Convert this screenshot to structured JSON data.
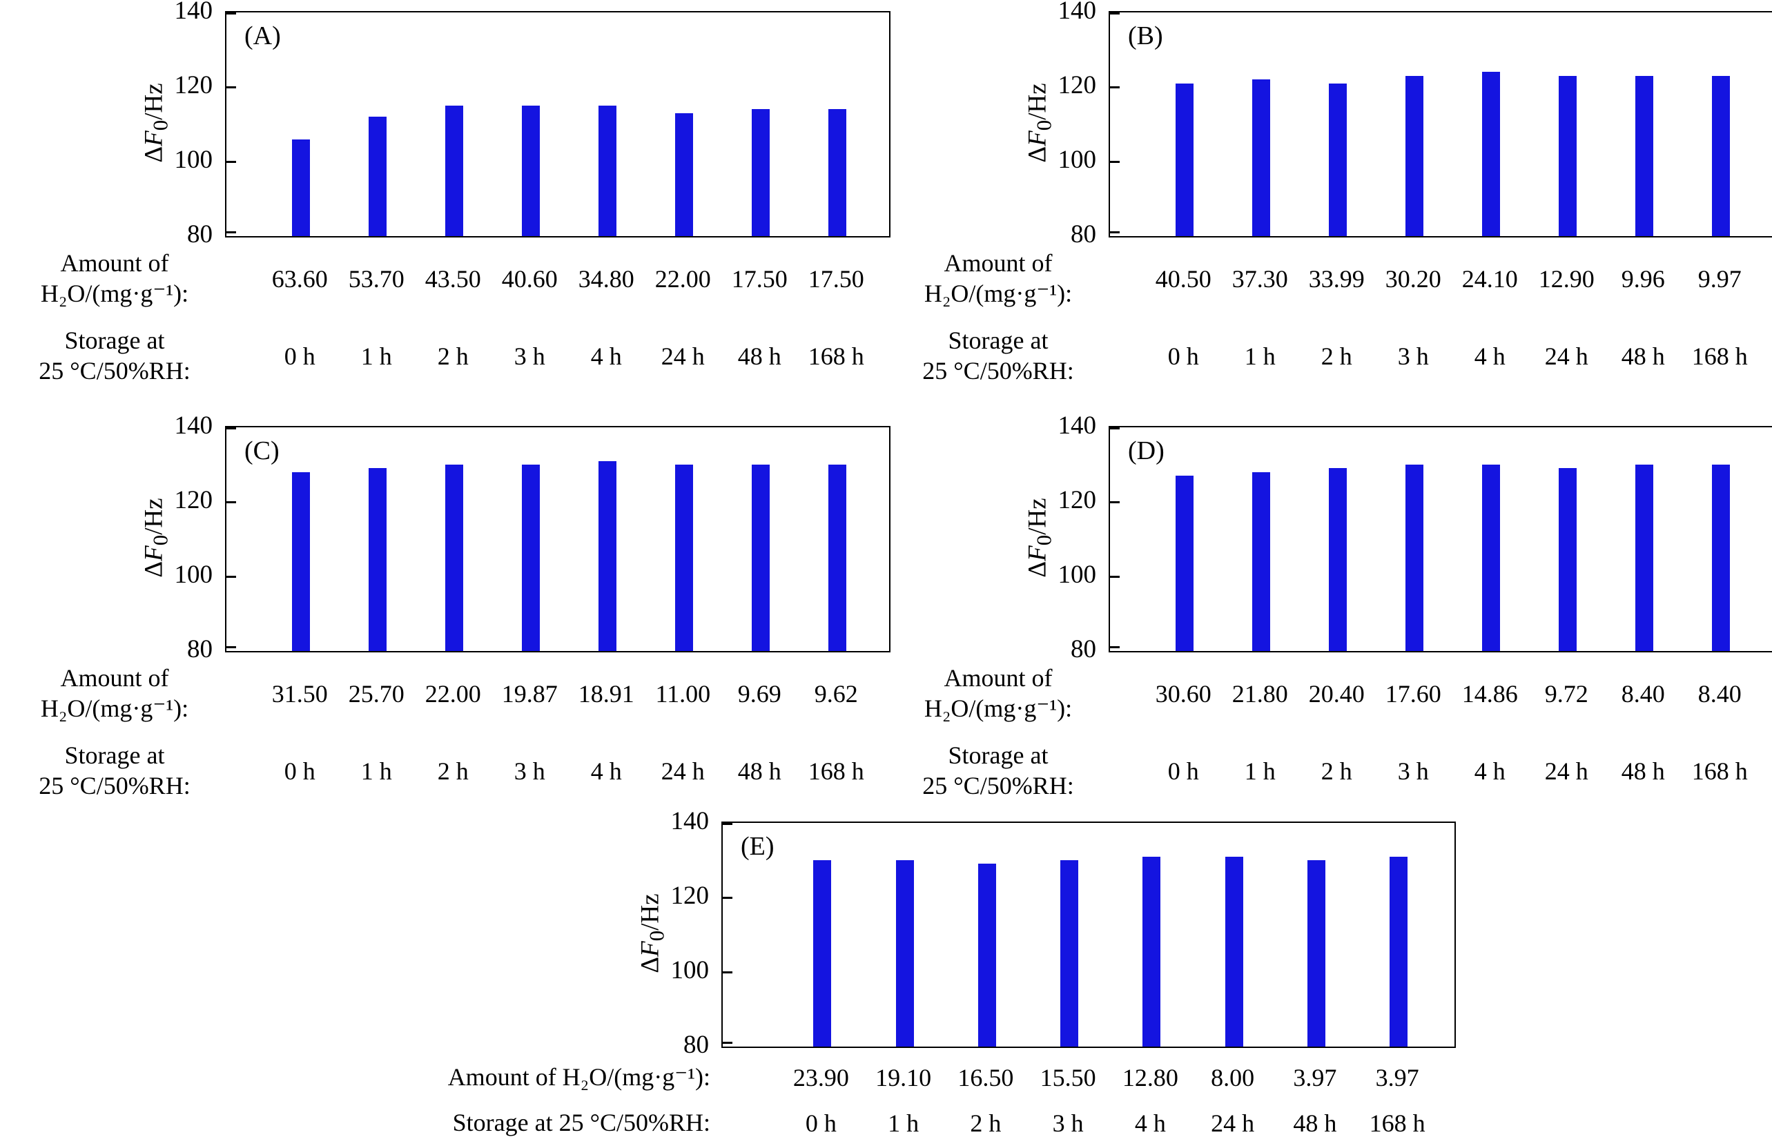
{
  "figure": {
    "bar_color": "#1414e0",
    "axis_color": "#000000",
    "ylabel_parts": {
      "delta": "Δ",
      "symbol": "F",
      "subscript": "0",
      "suffix": "/Hz"
    },
    "amount_label_lines": [
      "Amount of",
      "H₂O/(mg·g⁻¹):"
    ],
    "storage_label_lines": [
      "Storage at",
      "25 °C/50%RH:"
    ]
  },
  "chart_data": [
    {
      "type": "bar",
      "id": "A",
      "panel": "(A)",
      "ylabel": "ΔF₀/Hz",
      "ylim": [
        80,
        140
      ],
      "yticks": [
        80,
        100,
        120,
        140
      ],
      "amount_label": "Amount of H₂O/(mg·g⁻¹):",
      "storage_label": "Storage at 25 °C/50%RH:",
      "categories": [
        "0 h",
        "1 h",
        "2 h",
        "3 h",
        "4 h",
        "24 h",
        "48 h",
        "168 h"
      ],
      "amounts": [
        "63.60",
        "53.70",
        "43.50",
        "40.60",
        "34.80",
        "22.00",
        "17.50",
        "17.50"
      ],
      "values": [
        106,
        112,
        115,
        115,
        115,
        113,
        114,
        114
      ]
    },
    {
      "type": "bar",
      "id": "B",
      "panel": "(B)",
      "ylabel": "ΔF₀/Hz",
      "ylim": [
        80,
        140
      ],
      "yticks": [
        80,
        100,
        120,
        140
      ],
      "amount_label": "Amount of H₂O/(mg·g⁻¹):",
      "storage_label": "Storage at 25 °C/50%RH:",
      "categories": [
        "0 h",
        "1 h",
        "2 h",
        "3 h",
        "4 h",
        "24 h",
        "48 h",
        "168 h"
      ],
      "amounts": [
        "40.50",
        "37.30",
        "33.99",
        "30.20",
        "24.10",
        "12.90",
        "9.96",
        "9.97"
      ],
      "values": [
        121,
        122,
        121,
        123,
        124,
        123,
        123,
        123
      ]
    },
    {
      "type": "bar",
      "id": "C",
      "panel": "(C)",
      "ylabel": "ΔF₀/Hz",
      "ylim": [
        80,
        140
      ],
      "yticks": [
        80,
        100,
        120,
        140
      ],
      "amount_label": "Amount of H₂O/(mg·g⁻¹):",
      "storage_label": "Storage at 25 °C/50%RH:",
      "categories": [
        "0 h",
        "1 h",
        "2 h",
        "3 h",
        "4 h",
        "24 h",
        "48 h",
        "168 h"
      ],
      "amounts": [
        "31.50",
        "25.70",
        "22.00",
        "19.87",
        "18.91",
        "11.00",
        "9.69",
        "9.62"
      ],
      "values": [
        128,
        129,
        130,
        130,
        131,
        130,
        130,
        130
      ]
    },
    {
      "type": "bar",
      "id": "D",
      "panel": "(D)",
      "ylabel": "ΔF₀/Hz",
      "ylim": [
        80,
        140
      ],
      "yticks": [
        80,
        100,
        120,
        140
      ],
      "amount_label": "Amount of H₂O/(mg·g⁻¹):",
      "storage_label": "Storage at 25 °C/50%RH:",
      "categories": [
        "0 h",
        "1 h",
        "2 h",
        "3 h",
        "4 h",
        "24 h",
        "48 h",
        "168 h"
      ],
      "amounts": [
        "30.60",
        "21.80",
        "20.40",
        "17.60",
        "14.86",
        "9.72",
        "8.40",
        "8.40"
      ],
      "values": [
        127,
        128,
        129,
        130,
        130,
        129,
        130,
        130
      ]
    },
    {
      "type": "bar",
      "id": "E",
      "panel": "(E)",
      "ylabel": "ΔF₀/Hz",
      "ylim": [
        80,
        140
      ],
      "yticks": [
        80,
        100,
        120,
        140
      ],
      "amount_label": "Amount of H₂O/(mg·g⁻¹):",
      "storage_label": "Storage at 25 °C/50%RH:",
      "categories": [
        "0 h",
        "1 h",
        "2 h",
        "3 h",
        "4 h",
        "24 h",
        "48 h",
        "168 h"
      ],
      "amounts": [
        "23.90",
        "19.10",
        "16.50",
        "15.50",
        "12.80",
        "8.00",
        "3.97",
        "3.97"
      ],
      "values": [
        130,
        130,
        129,
        130,
        131,
        131,
        130,
        131
      ]
    }
  ]
}
